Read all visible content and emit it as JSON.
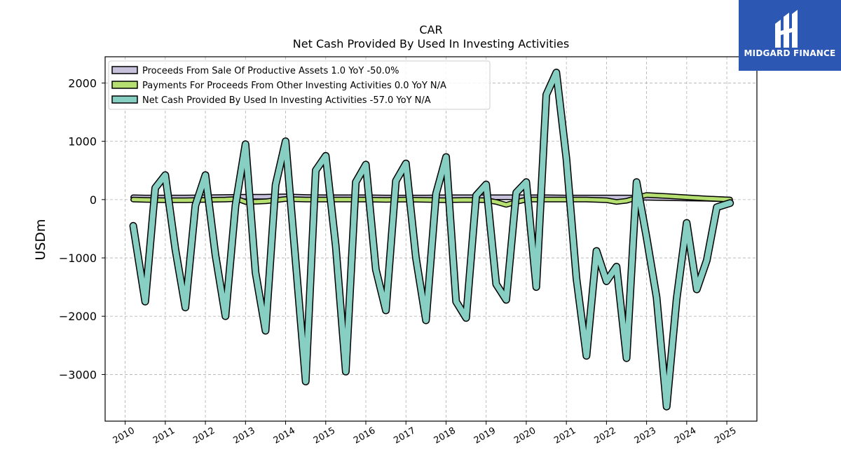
{
  "logo": {
    "text": "MIDGARD FINANCE"
  },
  "chart_data": {
    "type": "line",
    "title": "CAR",
    "subtitle": "Net Cash Provided By Used In Investing Activities",
    "ylabel": "USDm",
    "xlabel": "",
    "xlim": [
      2009.5,
      2025.75
    ],
    "ylim": [
      -3800,
      2450
    ],
    "yticks": [
      2000,
      1000,
      0,
      -1000,
      -2000,
      -3000
    ],
    "ytick_labels": [
      "2000",
      "1000",
      "0",
      "−1000",
      "−2000",
      "−3000"
    ],
    "xticks": [
      2010,
      2011,
      2012,
      2013,
      2014,
      2015,
      2016,
      2017,
      2018,
      2019,
      2020,
      2021,
      2022,
      2023,
      2024,
      2025
    ],
    "xtick_labels": [
      "2010",
      "2011",
      "2012",
      "2013",
      "2014",
      "2015",
      "2016",
      "2017",
      "2018",
      "2019",
      "2020",
      "2021",
      "2022",
      "2023",
      "2024",
      "2025"
    ],
    "grid": true,
    "legend_position": "top-left",
    "series": [
      {
        "name": "Proceeds From Sale Of Productive Assets  1.0 YoY -50.0%",
        "color": "#c7c1dc",
        "x": [
          2010.2,
          2010.5,
          2011.0,
          2011.5,
          2012.0,
          2012.5,
          2013.0,
          2013.5,
          2014.0,
          2014.5,
          2015.0,
          2015.5,
          2016.0,
          2016.5,
          2017.0,
          2017.5,
          2018.0,
          2018.5,
          2019.0,
          2019.5,
          2020.0,
          2020.5,
          2021.0,
          2021.5,
          2022.0,
          2022.5,
          2023.0,
          2023.5,
          2024.0,
          2024.5,
          2025.08
        ],
        "values": [
          40,
          35,
          35,
          35,
          40,
          45,
          50,
          50,
          55,
          45,
          40,
          40,
          40,
          35,
          35,
          35,
          40,
          40,
          40,
          40,
          40,
          40,
          35,
          35,
          35,
          35,
          30,
          25,
          20,
          15,
          1
        ]
      },
      {
        "name": "Payments For Proceeds From Other Investing Activities  0.0 YoY N/A",
        "color": "#b5df70",
        "x": [
          2010.2,
          2010.5,
          2011.0,
          2011.5,
          2012.0,
          2012.5,
          2012.8,
          2013.0,
          2013.3,
          2013.5,
          2014.0,
          2014.5,
          2015.0,
          2015.5,
          2016.0,
          2016.5,
          2017.0,
          2017.5,
          2018.0,
          2018.5,
          2019.0,
          2019.25,
          2019.5,
          2019.75,
          2020.0,
          2020.5,
          2021.0,
          2021.5,
          2022.0,
          2022.25,
          2022.5,
          2023.0,
          2023.5,
          2024.0,
          2024.5,
          2025.08
        ],
        "values": [
          0,
          -5,
          -10,
          -10,
          -5,
          0,
          10,
          -40,
          -35,
          -30,
          10,
          0,
          0,
          0,
          0,
          -5,
          0,
          -5,
          -10,
          -5,
          -10,
          -40,
          -90,
          -40,
          0,
          0,
          0,
          0,
          -10,
          -40,
          -20,
          80,
          60,
          40,
          20,
          0
        ]
      },
      {
        "name": "Net Cash Provided By Used In Investing Activities  -57.0 YoY N/A",
        "color": "#86cfc2",
        "x": [
          2010.2,
          2010.5,
          2010.75,
          2011.0,
          2011.25,
          2011.5,
          2011.75,
          2012.0,
          2012.25,
          2012.5,
          2012.75,
          2013.0,
          2013.25,
          2013.5,
          2013.75,
          2014.0,
          2014.25,
          2014.5,
          2014.75,
          2015.0,
          2015.25,
          2015.5,
          2015.75,
          2016.0,
          2016.25,
          2016.5,
          2016.75,
          2017.0,
          2017.25,
          2017.5,
          2017.75,
          2018.0,
          2018.25,
          2018.5,
          2018.75,
          2019.0,
          2019.25,
          2019.5,
          2019.75,
          2020.0,
          2020.25,
          2020.5,
          2020.75,
          2021.0,
          2021.25,
          2021.5,
          2021.75,
          2022.0,
          2022.25,
          2022.5,
          2022.75,
          2023.0,
          2023.25,
          2023.5,
          2023.75,
          2024.0,
          2024.25,
          2024.5,
          2024.75,
          2025.08
        ],
        "values": [
          -450,
          -1750,
          200,
          420,
          -850,
          -1850,
          -100,
          420,
          -950,
          -2000,
          -100,
          950,
          -1250,
          -2250,
          250,
          1000,
          -1050,
          -3120,
          500,
          750,
          -800,
          -2950,
          300,
          600,
          -1200,
          -1900,
          320,
          620,
          -1000,
          -2070,
          100,
          730,
          -1750,
          -2030,
          70,
          260,
          -1450,
          -1720,
          120,
          300,
          -1500,
          1800,
          2180,
          700,
          -1350,
          -2680,
          -880,
          -1400,
          -1150,
          -2720,
          300,
          -650,
          -1680,
          -3550,
          -1700,
          -400,
          -1540,
          -1040,
          -130,
          -60
        ]
      }
    ]
  }
}
